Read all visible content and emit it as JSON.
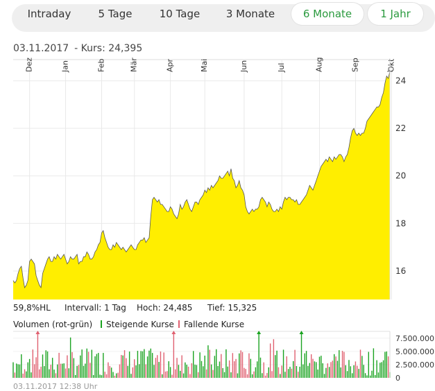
{
  "tabs": [
    {
      "label": "Intraday",
      "active": false
    },
    {
      "label": "5 Tage",
      "active": false
    },
    {
      "label": "10 Tage",
      "active": false
    },
    {
      "label": "3 Monate",
      "active": false
    },
    {
      "label": "6 Monate",
      "active": true
    },
    {
      "label": "1 Jahr",
      "active": true
    }
  ],
  "header": {
    "date": "03.11.2017",
    "kurs_label": "- Kurs: 24,395"
  },
  "stats": {
    "hl": "59,8%HL",
    "interval": "Intervall: 1 Tag",
    "hoch": "Hoch:  24,485",
    "tief": "Tief:  15,325"
  },
  "volume_legend": {
    "title": "Volumen (rot-grün)",
    "up": "Steigende Kurse",
    "down": "Fallende Kurse"
  },
  "footer": {
    "timestamp": "03.11.2017 12:38 Uhr"
  },
  "colors": {
    "fill": "#ffee00",
    "line": "#555555",
    "up": "#1aa320",
    "down": "#e06070",
    "active_tab": "#2a9a3e"
  },
  "chart_data": [
    {
      "type": "area",
      "x_month_labels": [
        "Dez",
        "Jan",
        "Feb",
        "Mär",
        "Apr",
        "Mai",
        "Jun",
        "Jul",
        "Aug",
        "Sep",
        "Okt"
      ],
      "month_start_index": [
        10,
        32,
        54,
        74,
        96,
        117,
        141,
        164,
        187,
        209,
        231
      ],
      "yticks": [
        16,
        18,
        20,
        22,
        24
      ],
      "ylim": [
        14.8,
        24.6
      ],
      "grid": true,
      "values": [
        15.6,
        15.5,
        15.6,
        15.9,
        16.1,
        16.2,
        15.7,
        15.3,
        15.4,
        15.6,
        16.4,
        16.5,
        16.4,
        16.3,
        15.8,
        15.6,
        15.4,
        15.3,
        15.9,
        16.1,
        16.3,
        16.5,
        16.6,
        16.4,
        16.4,
        16.6,
        16.5,
        16.7,
        16.6,
        16.5,
        16.6,
        16.7,
        16.5,
        16.3,
        16.4,
        16.6,
        16.5,
        16.5,
        16.6,
        16.7,
        16.3,
        16.4,
        16.4,
        16.6,
        16.6,
        16.8,
        16.7,
        16.5,
        16.5,
        16.6,
        16.8,
        16.9,
        17.1,
        17.2,
        17.6,
        17.7,
        17.4,
        17.2,
        17.0,
        16.9,
        16.9,
        17.1,
        17.0,
        17.2,
        17.1,
        17.0,
        16.9,
        17.0,
        16.9,
        16.8,
        16.9,
        17.0,
        17.1,
        17.0,
        16.9,
        16.9,
        17.1,
        17.2,
        17.3,
        17.3,
        17.4,
        17.2,
        17.3,
        17.4,
        18.3,
        19.0,
        19.1,
        19.0,
        18.9,
        19.0,
        18.8,
        18.8,
        18.7,
        18.6,
        18.5,
        18.5,
        18.7,
        18.6,
        18.4,
        18.3,
        18.2,
        18.4,
        18.8,
        18.6,
        18.7,
        18.9,
        19.0,
        18.8,
        18.6,
        18.5,
        18.7,
        18.9,
        18.9,
        18.8,
        19.0,
        19.1,
        19.2,
        19.4,
        19.3,
        19.5,
        19.4,
        19.6,
        19.5,
        19.6,
        19.7,
        19.8,
        20.0,
        19.9,
        19.9,
        20.0,
        20.1,
        20.2,
        20.0,
        20.3,
        19.9,
        19.8,
        19.5,
        19.6,
        19.8,
        19.5,
        19.4,
        19.2,
        18.7,
        18.5,
        18.4,
        18.5,
        18.6,
        18.5,
        18.6,
        18.6,
        18.7,
        19.0,
        19.1,
        19.0,
        18.9,
        18.7,
        18.9,
        18.8,
        18.6,
        18.5,
        18.5,
        18.6,
        18.5,
        18.7,
        18.6,
        18.9,
        19.1,
        19.0,
        19.1,
        19.1,
        19.0,
        19.0,
        18.9,
        19.0,
        18.8,
        18.8,
        18.9,
        19.0,
        19.1,
        19.2,
        19.4,
        19.6,
        19.5,
        19.4,
        19.6,
        19.8,
        20.0,
        20.2,
        20.4,
        20.5,
        20.6,
        20.7,
        20.6,
        20.8,
        20.7,
        20.6,
        20.8,
        20.7,
        20.8,
        20.9,
        20.9,
        20.8,
        20.6,
        20.8,
        20.9,
        21.2,
        21.6,
        21.9,
        22.0,
        21.8,
        21.7,
        21.8,
        21.7,
        21.8,
        21.8,
        22.0,
        22.3,
        22.4,
        22.5,
        22.6,
        22.7,
        22.8,
        22.9,
        22.9,
        23.0,
        23.3,
        23.5,
        23.9,
        24.2,
        24.1,
        24.4
      ]
    },
    {
      "type": "bar",
      "yticks": [
        "7.500.000",
        "5.000.000",
        "2.500.000",
        "0"
      ],
      "ytick_values": [
        7500000,
        5000000,
        2500000,
        0
      ],
      "ylim": [
        0,
        8800000
      ],
      "volume_seed": 7,
      "clipped_up_at": [
        15,
        98,
        150,
        176
      ]
    }
  ]
}
